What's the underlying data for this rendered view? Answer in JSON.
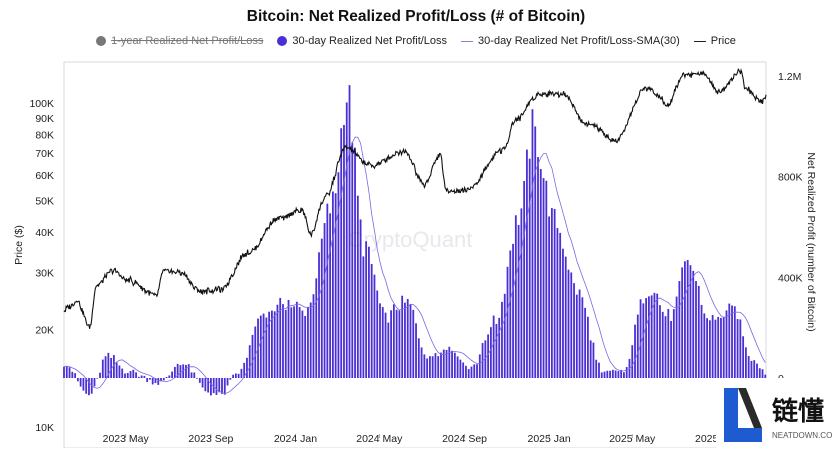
{
  "chart_data": {
    "type": "bar",
    "title": "Bitcoin: Net Realized Profit/Loss (# of Bitcoin)",
    "watermark": "CryptoQuant",
    "legend": [
      {
        "label": "1-year Realized Net Profit/Loss",
        "color": "#777777",
        "disabled": true,
        "marker": "dot"
      },
      {
        "label": "30-day Realized Net Profit/Loss",
        "color": "#4b2fd4",
        "disabled": false,
        "marker": "dot"
      },
      {
        "label": "30-day Realized Net Profit/Loss-SMA(30)",
        "color": "#4b2fd4",
        "disabled": false,
        "marker": "line"
      },
      {
        "label": "Price",
        "color": "#111111",
        "disabled": false,
        "marker": "line"
      }
    ],
    "x_ticks": [
      "2023 May",
      "2023 Sep",
      "2024 Jan",
      "2024 May",
      "2024 Sep",
      "2025 Jan",
      "2025 May",
      "2025 Sep"
    ],
    "y_left": {
      "label": "Price ($)",
      "scale": "log",
      "range": [
        10000,
        150000
      ],
      "ticks": [
        {
          "v": 10000,
          "t": "10K"
        },
        {
          "v": 20000,
          "t": "20K"
        },
        {
          "v": 30000,
          "t": "30K"
        },
        {
          "v": 40000,
          "t": "40K"
        },
        {
          "v": 50000,
          "t": "50K"
        },
        {
          "v": 60000,
          "t": "60K"
        },
        {
          "v": 70000,
          "t": "70K"
        },
        {
          "v": 80000,
          "t": "80K"
        },
        {
          "v": 90000,
          "t": "90K"
        },
        {
          "v": 100000,
          "t": "100K"
        }
      ]
    },
    "y_right": {
      "label": "Net Realized Profit (number of Bitcoin)",
      "range": [
        0,
        1300000
      ],
      "ticks": [
        {
          "v": 0,
          "t": "0"
        },
        {
          "v": 400000,
          "t": "400K"
        },
        {
          "v": 800000,
          "t": "800K"
        },
        {
          "v": 1200000,
          "t": "1.2M"
        }
      ]
    },
    "x_range": [
      "2023-02-01",
      "2025-11-10"
    ],
    "price_anchors": [
      [
        "2023-02-01",
        23000
      ],
      [
        "2023-02-20",
        24500
      ],
      [
        "2023-03-10",
        20300
      ],
      [
        "2023-03-20",
        27500
      ],
      [
        "2023-04-14",
        30300
      ],
      [
        "2023-05-01",
        28500
      ],
      [
        "2023-06-15",
        25500
      ],
      [
        "2023-06-25",
        30400
      ],
      [
        "2023-07-15",
        30200
      ],
      [
        "2023-08-18",
        26200
      ],
      [
        "2023-09-15",
        26600
      ],
      [
        "2023-10-25",
        34500
      ],
      [
        "2023-12-08",
        44000
      ],
      [
        "2024-01-11",
        46500
      ],
      [
        "2024-01-23",
        39500
      ],
      [
        "2024-02-15",
        52000
      ],
      [
        "2024-03-14",
        72500
      ],
      [
        "2024-04-20",
        64000
      ],
      [
        "2024-06-05",
        71000
      ],
      [
        "2024-07-05",
        56000
      ],
      [
        "2024-07-28",
        69000
      ],
      [
        "2024-08-05",
        53500
      ],
      [
        "2024-09-06",
        54000
      ],
      [
        "2024-10-28",
        72000
      ],
      [
        "2024-11-12",
        88000
      ],
      [
        "2024-12-17",
        106000
      ],
      [
        "2025-01-20",
        107000
      ],
      [
        "2025-02-25",
        86000
      ],
      [
        "2025-04-08",
        76500
      ],
      [
        "2025-05-22",
        111000
      ],
      [
        "2025-06-22",
        100000
      ],
      [
        "2025-07-14",
        122000
      ],
      [
        "2025-08-14",
        123000
      ],
      [
        "2025-09-01",
        108000
      ],
      [
        "2025-10-06",
        125000
      ],
      [
        "2025-10-10",
        111000
      ],
      [
        "2025-11-04",
        101000
      ],
      [
        "2025-11-10",
        106000
      ]
    ],
    "profit_anchors": [
      [
        "2023-02-01",
        60000
      ],
      [
        "2023-03-10",
        -70000
      ],
      [
        "2023-04-05",
        90000
      ],
      [
        "2023-05-01",
        30000
      ],
      [
        "2023-06-20",
        -20000
      ],
      [
        "2023-07-20",
        60000
      ],
      [
        "2023-09-01",
        -60000
      ],
      [
        "2023-09-15",
        -70000
      ],
      [
        "2023-10-10",
        20000
      ],
      [
        "2023-11-15",
        250000
      ],
      [
        "2023-12-20",
        300000
      ],
      [
        "2024-01-15",
        260000
      ],
      [
        "2024-02-25",
        700000
      ],
      [
        "2024-03-14",
        1130000
      ],
      [
        "2024-04-10",
        520000
      ],
      [
        "2024-05-10",
        250000
      ],
      [
        "2024-06-10",
        300000
      ],
      [
        "2024-07-10",
        90000
      ],
      [
        "2024-08-10",
        120000
      ],
      [
        "2024-09-10",
        40000
      ],
      [
        "2024-10-15",
        220000
      ],
      [
        "2024-11-20",
        650000
      ],
      [
        "2024-12-08",
        980000
      ],
      [
        "2025-01-10",
        620000
      ],
      [
        "2025-02-10",
        350000
      ],
      [
        "2025-03-20",
        30000
      ],
      [
        "2025-04-15",
        20000
      ],
      [
        "2025-05-25",
        360000
      ],
      [
        "2025-06-25",
        240000
      ],
      [
        "2025-07-20",
        460000
      ],
      [
        "2025-08-20",
        230000
      ],
      [
        "2025-09-25",
        270000
      ],
      [
        "2025-10-20",
        80000
      ],
      [
        "2025-11-10",
        20000
      ]
    ]
  }
}
